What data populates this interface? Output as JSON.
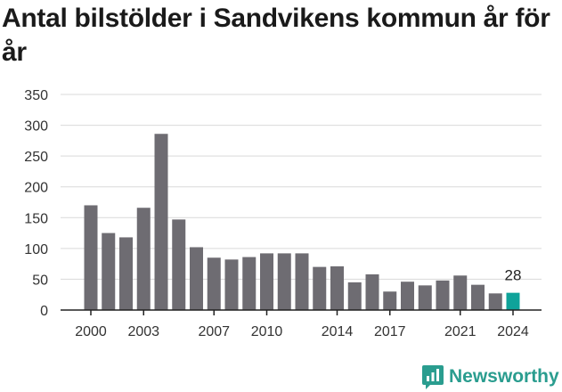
{
  "title": "Antal bilstölder i Sandvikens kommun år för år",
  "brand": {
    "name": "Newsworthy",
    "icon": "newsworthy-logo-icon",
    "color": "#2a9d8f"
  },
  "chart_data": {
    "type": "bar",
    "title": "Antal bilstölder i Sandvikens kommun år för år",
    "xlabel": "",
    "ylabel": "",
    "categories": [
      "2000",
      "2001",
      "2002",
      "2003",
      "2004",
      "2005",
      "2006",
      "2007",
      "2008",
      "2009",
      "2010",
      "2011",
      "2012",
      "2013",
      "2014",
      "2015",
      "2016",
      "2017",
      "2018",
      "2019",
      "2020",
      "2021",
      "2022",
      "2023",
      "2024"
    ],
    "values": [
      170,
      125,
      118,
      166,
      286,
      147,
      102,
      85,
      82,
      86,
      92,
      92,
      92,
      70,
      71,
      45,
      58,
      30,
      46,
      40,
      48,
      56,
      41,
      27,
      28
    ],
    "x_tick_labels": [
      "2000",
      "2003",
      "2007",
      "2010",
      "2014",
      "2017",
      "2021",
      "2024"
    ],
    "y_ticks": [
      0,
      50,
      100,
      150,
      200,
      250,
      300,
      350
    ],
    "ylim": [
      0,
      350
    ],
    "grid": true,
    "bar_color": "#6e6c72",
    "highlight_color": "#0fa39a",
    "highlight_index": 24,
    "data_labels": [
      {
        "index": 24,
        "text": "28"
      }
    ]
  }
}
